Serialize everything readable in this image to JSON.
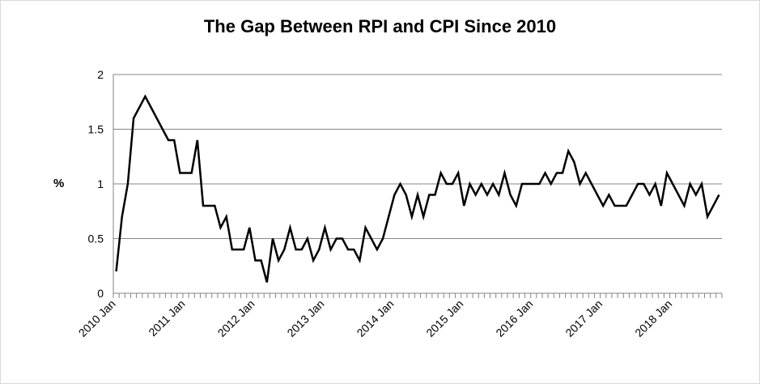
{
  "chart_data": {
    "type": "line",
    "title": "The Gap Between RPI and CPI Since 2010",
    "ylabel": "%",
    "ylim": [
      0,
      2
    ],
    "yticks": [
      "0",
      "0.5",
      "1",
      "1.5",
      "2"
    ],
    "xtick_labels": [
      "2010 Jan",
      "2011 Jan",
      "2012 Jan",
      "2013 Jan",
      "2014 Jan",
      "2015 Jan",
      "2016 Jan",
      "2017 Jan",
      "2018 Jan"
    ],
    "grid": "horizontal",
    "line_color": "#000000",
    "series": [
      {
        "values": [
          0.2,
          0.7,
          1.0,
          1.6,
          1.7,
          1.8,
          1.7,
          1.6,
          1.5,
          1.4,
          1.4,
          1.1,
          1.1,
          1.1,
          1.4,
          0.8,
          0.8,
          0.8,
          0.6,
          0.7,
          0.4,
          0.4,
          0.4,
          0.6,
          0.3,
          0.3,
          0.1,
          0.5,
          0.3,
          0.4,
          0.6,
          0.4,
          0.4,
          0.5,
          0.3,
          0.4,
          0.6,
          0.4,
          0.5,
          0.5,
          0.4,
          0.4,
          0.3,
          0.6,
          0.5,
          0.4,
          0.5,
          0.7,
          0.9,
          1.0,
          0.9,
          0.7,
          0.9,
          0.7,
          0.9,
          0.9,
          1.1,
          1.0,
          1.0,
          1.1,
          0.8,
          1.0,
          0.9,
          1.0,
          0.9,
          1.0,
          0.9,
          1.1,
          0.9,
          0.8,
          1.0,
          1.0,
          1.0,
          1.0,
          1.1,
          1.0,
          1.1,
          1.1,
          1.3,
          1.2,
          1.0,
          1.1,
          1.0,
          0.9,
          0.8,
          0.9,
          0.8,
          0.8,
          0.8,
          0.9,
          1.0,
          1.0,
          0.9,
          1.0,
          0.8,
          1.1,
          1.0,
          0.9,
          0.8,
          1.0,
          0.9,
          1.0,
          0.7,
          0.8,
          0.9
        ]
      }
    ]
  }
}
